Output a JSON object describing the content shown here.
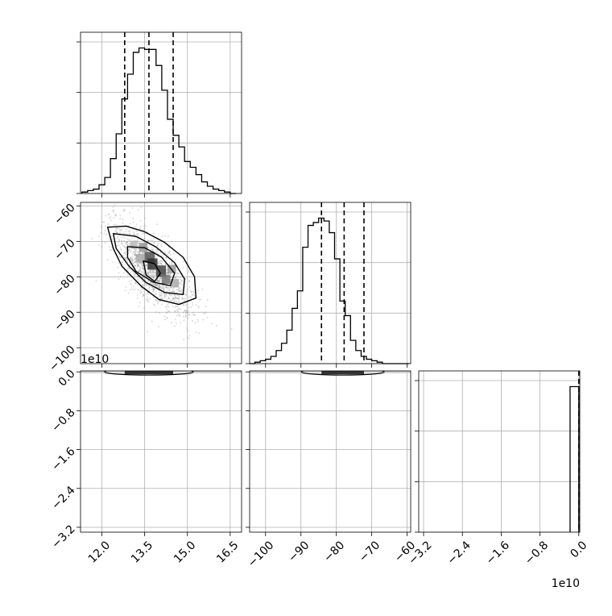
{
  "chart_data": {
    "type": "corner",
    "parameters": [
      {
        "ticks": [
          12.0,
          13.5,
          15.0,
          16.5
        ],
        "tick_labels": [
          "12.0",
          "13.5",
          "15.0",
          "16.5"
        ],
        "range": [
          11.25,
          16.9
        ],
        "quantiles": [
          12.8,
          13.65,
          14.5
        ],
        "hist": {
          "edges": [
            11.3,
            11.5,
            11.7,
            11.9,
            12.1,
            12.3,
            12.5,
            12.7,
            12.9,
            13.1,
            13.3,
            13.5,
            13.7,
            13.9,
            14.1,
            14.3,
            14.5,
            14.7,
            14.9,
            15.1,
            15.3,
            15.5,
            15.7,
            15.9,
            16.1,
            16.3,
            16.5,
            16.7
          ],
          "counts": [
            1,
            2,
            3,
            6,
            11,
            24,
            41,
            65,
            82,
            97,
            100,
            99,
            99,
            88,
            71,
            51,
            40,
            32,
            22,
            18,
            13,
            8,
            5,
            3,
            2,
            1,
            0
          ]
        }
      },
      {
        "ticks": [
          -100,
          -90,
          -80,
          -70,
          -60
        ],
        "tick_labels": [
          "−100",
          "−90",
          "−80",
          "−70",
          "−60"
        ],
        "range": [
          -104.5,
          -59
        ],
        "quantiles": [
          -84.2,
          -77.8,
          -72.2
        ],
        "hist": {
          "edges": [
            -104.5,
            -103,
            -101.5,
            -100,
            -98.5,
            -97,
            -95.5,
            -94,
            -92.5,
            -91,
            -89.5,
            -88,
            -86.5,
            -85,
            -83.5,
            -82,
            -80.5,
            -79,
            -77.5,
            -76,
            -74.5,
            -73,
            -71.5,
            -70,
            -68.5,
            -67,
            -65.5,
            -64,
            -62.5,
            -61,
            -59.5
          ],
          "counts": [
            0,
            1,
            2,
            3,
            5,
            9,
            14,
            23,
            38,
            50,
            80,
            95,
            97,
            100,
            98,
            90,
            72,
            43,
            33,
            16,
            9,
            5,
            3,
            2,
            1,
            0,
            0,
            0,
            0,
            0
          ]
        }
      },
      {
        "ticks": [
          -3.2,
          -2.4,
          -1.6,
          -0.8,
          0.0
        ],
        "tick_labels": [
          "−3.2",
          "−2.4",
          "−1.6",
          "−0.8",
          "0.0"
        ],
        "range": [
          -3.3,
          0.02
        ],
        "quantiles": [
          0.0
        ],
        "offset_text": "1e10",
        "hist": {
          "edges": [
            -0.18,
            0.0
          ],
          "counts": [
            100
          ]
        }
      }
    ],
    "pair_0_1": {
      "contours": [
        [
          [
            12.2,
            -66
          ],
          [
            12.85,
            -65.7
          ],
          [
            13.5,
            -67.3
          ],
          [
            14.2,
            -70.3
          ],
          [
            14.85,
            -74.5
          ],
          [
            15.25,
            -80
          ],
          [
            15.3,
            -86
          ],
          [
            14.7,
            -87.8
          ],
          [
            14.0,
            -86.4
          ],
          [
            13.4,
            -82.8
          ],
          [
            12.7,
            -77
          ],
          [
            12.4,
            -72
          ]
        ],
        [
          [
            12.4,
            -67.8
          ],
          [
            13.2,
            -68.6
          ],
          [
            13.9,
            -71.6
          ],
          [
            14.55,
            -76
          ],
          [
            14.9,
            -80.6
          ],
          [
            14.85,
            -85
          ],
          [
            14.2,
            -84.4
          ],
          [
            13.55,
            -81.6
          ],
          [
            12.95,
            -77
          ],
          [
            12.5,
            -72
          ]
        ],
        [
          [
            12.9,
            -71.5
          ],
          [
            13.5,
            -71.8
          ],
          [
            14.1,
            -74.5
          ],
          [
            14.55,
            -79
          ],
          [
            14.4,
            -82.5
          ],
          [
            13.8,
            -81.5
          ],
          [
            13.2,
            -78.5
          ],
          [
            12.9,
            -74.5
          ]
        ],
        [
          [
            13.45,
            -75.5
          ],
          [
            13.85,
            -76.3
          ],
          [
            14.05,
            -79
          ],
          [
            13.85,
            -81.3
          ],
          [
            13.55,
            -79.5
          ]
        ]
      ]
    },
    "pair_0_2": {
      "cell_value_x": [
        12.8,
        13.65,
        14.5
      ]
    },
    "pair_1_2": {
      "cell_value_x": [
        -84.2,
        -77.8,
        -72.2
      ]
    }
  }
}
